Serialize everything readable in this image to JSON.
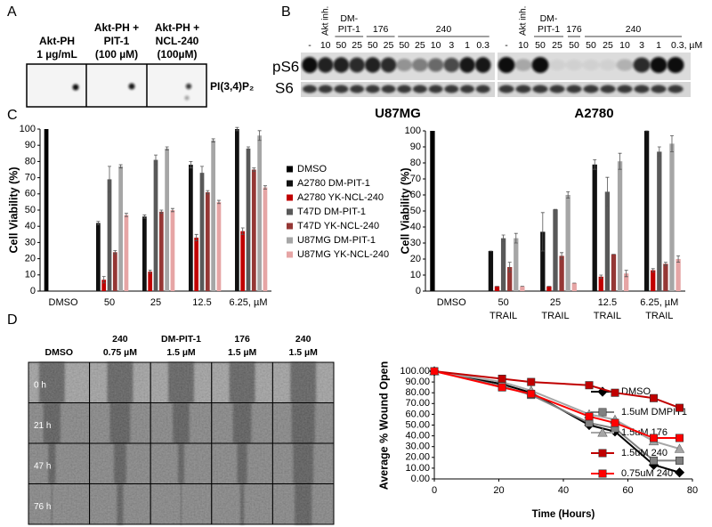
{
  "panel_labels": [
    "A",
    "B",
    "C",
    "D"
  ],
  "panel_a": {
    "lanes": [
      [
        "Akt-PH",
        "1 µg/mL"
      ],
      [
        "Akt-PH +",
        "PIT-1",
        "(100 µM)"
      ],
      [
        "Akt-PH +",
        "NCL-240",
        "(100µM)"
      ]
    ],
    "lipid_label": "PI(3,4)P₂"
  },
  "panel_b": {
    "rows": [
      "pS6",
      "S6"
    ],
    "blots": [
      {
        "cell_line": "U87MG",
        "groups": [
          [
            "Akt inh."
          ],
          [
            "DM-",
            "PIT-1"
          ],
          [
            "176"
          ],
          [
            "240"
          ]
        ],
        "doses": [
          "-",
          "10",
          "50",
          "25",
          "50",
          "25",
          "50",
          "25",
          "10",
          "3",
          "1",
          "0.3"
        ]
      },
      {
        "cell_line": "A2780",
        "groups": [
          [
            "Akt inh."
          ],
          [
            "DM-",
            "PIT-1"
          ],
          [
            "176"
          ],
          [
            "240"
          ]
        ],
        "doses": [
          "-",
          "10",
          "50",
          "25",
          "50",
          "50",
          "25",
          "10",
          "3",
          "1",
          "0.3, µM"
        ]
      }
    ]
  },
  "panel_d": {
    "columns": [
      [
        "DMSO"
      ],
      [
        "240",
        "0.75 µM"
      ],
      [
        "DM-PIT-1",
        "1.5 µM"
      ],
      [
        "176",
        "1.5 µM"
      ],
      [
        "240",
        "1.5 µM"
      ]
    ],
    "timepoints": [
      "0 h",
      "21 h",
      "47 h",
      "76 h"
    ]
  },
  "chart_data": [
    {
      "type": "bar",
      "y_label": "Cell Viability (%)",
      "categories": [
        "DMSO",
        "50",
        "25",
        "12.5",
        "6.25, µM"
      ],
      "ylim": [
        0,
        100
      ],
      "yticks": [
        0,
        10,
        20,
        30,
        40,
        50,
        60,
        70,
        80,
        90,
        100
      ],
      "legend": "right",
      "series": [
        {
          "name": "DMSO",
          "color": "#000000",
          "values": [
            100,
            null,
            null,
            null,
            null
          ],
          "errors": [
            null,
            null,
            null,
            null,
            null
          ]
        },
        {
          "name": "A2780 DM-PIT-1",
          "color": "#111111",
          "values": [
            null,
            42,
            46,
            78,
            100
          ],
          "errors": [
            null,
            1,
            1,
            2,
            1
          ]
        },
        {
          "name": "A2780 YK-NCL-240",
          "color": "#c00000",
          "values": [
            null,
            7,
            12,
            33,
            37
          ],
          "errors": [
            null,
            2,
            1,
            2,
            2
          ]
        },
        {
          "name": "T47D DM-PIT-1",
          "color": "#595959",
          "values": [
            null,
            69,
            81,
            73,
            88
          ],
          "errors": [
            null,
            8,
            3,
            4,
            1
          ]
        },
        {
          "name": "T47D YK-NCL-240",
          "color": "#953735",
          "values": [
            null,
            24,
            49,
            61,
            75
          ],
          "errors": [
            null,
            1,
            1,
            1,
            1
          ]
        },
        {
          "name": "U87MG DM-PIT-1",
          "color": "#a6a6a6",
          "values": [
            null,
            77,
            88,
            93,
            96
          ],
          "errors": [
            null,
            1,
            1,
            1,
            3
          ]
        },
        {
          "name": "U87MG YK-NCL-240",
          "color": "#e6a5a5",
          "values": [
            null,
            47,
            50,
            55,
            64
          ],
          "errors": [
            null,
            1,
            1,
            1,
            1
          ]
        }
      ]
    },
    {
      "type": "bar",
      "y_label": "Cell Viability (%)",
      "categories": [
        "DMSO",
        "50",
        "25",
        "12.5",
        "6.25, µM"
      ],
      "xtick_sublabel": "TRAIL",
      "ylim": [
        0,
        100
      ],
      "yticks": [
        0,
        10,
        20,
        30,
        40,
        50,
        60,
        70,
        80,
        90,
        100
      ],
      "series": [
        {
          "color": "#000000",
          "values": [
            100,
            null,
            null,
            null,
            null
          ],
          "errors": [
            null,
            null,
            null,
            null,
            null
          ]
        },
        {
          "color": "#111111",
          "values": [
            null,
            25,
            37,
            79,
            100
          ],
          "errors": [
            null,
            0,
            12,
            3,
            0
          ]
        },
        {
          "color": "#c00000",
          "values": [
            null,
            3,
            3,
            9,
            13
          ],
          "errors": [
            null,
            0,
            0,
            1,
            1
          ]
        },
        {
          "color": "#595959",
          "values": [
            null,
            33,
            51,
            62,
            87
          ],
          "errors": [
            null,
            2,
            0,
            9,
            3
          ]
        },
        {
          "color": "#953735",
          "values": [
            null,
            15,
            22,
            23,
            17
          ],
          "errors": [
            null,
            3,
            2,
            0,
            1
          ]
        },
        {
          "color": "#a6a6a6",
          "values": [
            null,
            33,
            60,
            81,
            92
          ],
          "errors": [
            null,
            3,
            2,
            5,
            5
          ]
        },
        {
          "color": "#e6a5a5",
          "values": [
            null,
            3,
            5,
            11,
            20
          ],
          "errors": [
            null,
            0,
            0,
            2,
            2
          ]
        }
      ]
    },
    {
      "type": "line",
      "y_label": "Average % Wound Open",
      "x_label": "Time (Hours)",
      "x": [
        0,
        21,
        30,
        48,
        56,
        68,
        76
      ],
      "xlim": [
        0,
        80
      ],
      "xticks": [
        0,
        20,
        40,
        60,
        80
      ],
      "ylim": [
        0,
        100
      ],
      "yticks": [
        {
          "value": 0,
          "label": "0.00"
        },
        {
          "value": 10,
          "label": "10.00"
        },
        {
          "value": 20,
          "label": "20.00"
        },
        {
          "value": 30,
          "label": "30.00"
        },
        {
          "value": 40,
          "label": "40.00"
        },
        {
          "value": 50,
          "label": "50.00"
        },
        {
          "value": 60,
          "label": "60.00"
        },
        {
          "value": 70,
          "label": "70.00"
        },
        {
          "value": 80,
          "label": "80.00"
        },
        {
          "value": 90,
          "label": "90.00"
        },
        {
          "value": 100,
          "label": "100.00"
        }
      ],
      "legend": "right",
      "series": [
        {
          "name": "DMSO",
          "color": "#000000",
          "marker": "diamond",
          "values": [
            100,
            88,
            80,
            50,
            44,
            13,
            6
          ]
        },
        {
          "name": "1.5uM DMPIT1",
          "color": "#808080",
          "marker": "square",
          "values": [
            100,
            86,
            78,
            52,
            47,
            17,
            17
          ]
        },
        {
          "name": "1.5uM 176",
          "color": "#a6a6a6",
          "marker": "triangle",
          "values": [
            100,
            90,
            82,
            60,
            55,
            35,
            28
          ]
        },
        {
          "name": "1.5uM 240",
          "color": "#c00000",
          "marker": "square",
          "values": [
            100,
            93,
            90,
            87,
            80,
            75,
            66
          ]
        },
        {
          "name": "0.75uM 240",
          "color": "#ff0000",
          "marker": "square",
          "values": [
            100,
            85,
            79,
            58,
            52,
            38,
            38
          ]
        }
      ]
    }
  ]
}
